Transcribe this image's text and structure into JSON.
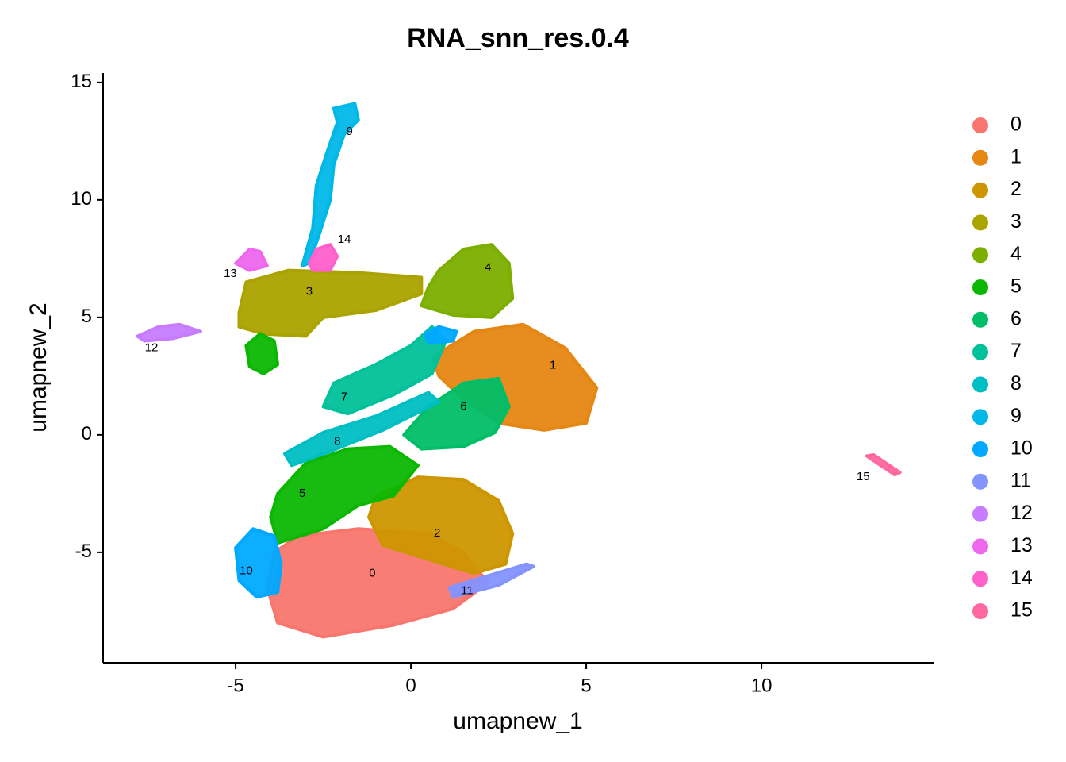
{
  "chart_data": {
    "type": "scatter",
    "title": "RNA_snn_res.0.4",
    "x_label": "umapnew_1",
    "y_label": "umapnew_2",
    "xlim": [
      -8.78,
      14.93
    ],
    "ylim": [
      -9.7,
      15.4
    ],
    "xticks": [
      -5,
      0,
      5,
      10
    ],
    "yticks": [
      -5,
      0,
      5,
      10,
      15
    ],
    "legend": "right",
    "series": [
      {
        "name": "0",
        "color": "#F8766D",
        "label_at": [
          -1.1,
          -5.9
        ],
        "regions": [
          {
            "x": [
              -3.9,
              -3.2,
              -1.5,
              0.5,
              1.5,
              2.2,
              1.2,
              -0.5,
              -2.5,
              -3.8,
              -4.1
            ],
            "y": [
              -5.0,
              -4.3,
              -4.0,
              -4.2,
              -5.0,
              -6.3,
              -7.4,
              -8.1,
              -8.6,
              -8.0,
              -6.5
            ]
          }
        ]
      },
      {
        "name": "1",
        "color": "#E68613",
        "label_at": [
          4.05,
          2.95
        ],
        "regions": [
          {
            "x": [
              0.6,
              1.8,
              3.2,
              4.4,
              5.3,
              5.0,
              3.8,
              2.5,
              1.5,
              0.8
            ],
            "y": [
              3.3,
              4.4,
              4.7,
              3.7,
              2.0,
              0.5,
              0.2,
              0.5,
              1.5,
              2.5
            ]
          }
        ]
      },
      {
        "name": "2",
        "color": "#CD9600",
        "label_at": [
          0.75,
          -4.2
        ],
        "regions": [
          {
            "x": [
              -1.0,
              0.2,
              1.5,
              2.5,
              2.9,
              2.7,
              1.8,
              0.5,
              -0.8,
              -1.2
            ],
            "y": [
              -2.6,
              -1.8,
              -1.9,
              -2.8,
              -4.2,
              -5.5,
              -5.9,
              -5.3,
              -4.7,
              -3.5
            ]
          }
        ]
      },
      {
        "name": "3",
        "color": "#ABA300",
        "label_at": [
          -2.9,
          6.1
        ],
        "regions": [
          {
            "x": [
              -4.9,
              -4.7,
              -3.5,
              -1.5,
              0.3,
              0.3,
              -1.0,
              -2.5,
              -3.0,
              -4.2,
              -4.9
            ],
            "y": [
              5.2,
              6.5,
              7.0,
              6.9,
              6.7,
              6.0,
              5.3,
              5.0,
              4.2,
              4.3,
              4.6
            ]
          }
        ]
      },
      {
        "name": "4",
        "color": "#7CAE00",
        "label_at": [
          2.2,
          7.1
        ],
        "regions": [
          {
            "x": [
              0.8,
              1.5,
              2.3,
              2.8,
              2.9,
              2.3,
              1.2,
              0.3,
              0.5
            ],
            "y": [
              7.0,
              7.9,
              8.1,
              7.3,
              5.8,
              5.0,
              5.1,
              5.5,
              6.3
            ]
          }
        ]
      },
      {
        "name": "5",
        "color": "#0CB702",
        "label_at": [
          -3.1,
          -2.5
        ],
        "regions": [
          {
            "x": [
              -3.8,
              -3.0,
              -1.8,
              -0.6,
              0.2,
              -0.5,
              -1.5,
              -2.5,
              -3.8,
              -4.0
            ],
            "y": [
              -2.5,
              -1.2,
              -0.6,
              -0.5,
              -1.3,
              -2.6,
              -3.0,
              -4.0,
              -4.6,
              -3.5
            ]
          },
          {
            "x": [
              -4.7,
              -4.3,
              -3.9,
              -3.8,
              -4.2,
              -4.6
            ],
            "y": [
              3.8,
              4.3,
              4.0,
              3.0,
              2.6,
              2.9
            ]
          }
        ]
      },
      {
        "name": "6",
        "color": "#00BE67",
        "label_at": [
          1.5,
          1.2
        ],
        "regions": [
          {
            "x": [
              -0.2,
              0.5,
              1.5,
              2.5,
              2.8,
              2.4,
              1.5,
              0.3
            ],
            "y": [
              0.0,
              1.2,
              2.2,
              2.4,
              1.2,
              0.1,
              -0.5,
              -0.6
            ]
          }
        ]
      },
      {
        "name": "7",
        "color": "#00C19A",
        "label_at": [
          -1.9,
          1.6
        ],
        "regions": [
          {
            "x": [
              -2.5,
              -2.2,
              -1.0,
              0.0,
              0.6,
              1.0,
              0.6,
              -0.5,
              -1.8
            ],
            "y": [
              1.2,
              2.2,
              3.0,
              3.8,
              4.6,
              4.0,
              2.6,
              1.7,
              0.9
            ]
          }
        ]
      },
      {
        "name": "8",
        "color": "#00BFC4",
        "label_at": [
          -2.1,
          -0.3
        ],
        "regions": [
          {
            "x": [
              -3.6,
              -2.5,
              -1.0,
              0.5,
              0.8,
              -0.8,
              -2.3,
              -3.4
            ],
            "y": [
              -0.8,
              0.1,
              0.8,
              1.8,
              1.4,
              0.2,
              -0.7,
              -1.3
            ]
          }
        ]
      },
      {
        "name": "9",
        "color": "#00B8E7",
        "label_at": [
          -1.75,
          12.9
        ],
        "regions": [
          {
            "x": [
              -3.1,
              -2.8,
              -2.7,
              -2.4,
              -2.1,
              -2.2,
              -1.6,
              -1.5,
              -1.9,
              -2.2,
              -2.3,
              -2.6,
              -2.9
            ],
            "y": [
              7.2,
              8.8,
              10.6,
              12.0,
              13.3,
              13.9,
              14.1,
              13.4,
              12.8,
              11.5,
              10.0,
              8.6,
              7.3
            ]
          }
        ]
      },
      {
        "name": "10",
        "color": "#00A9FF",
        "label_at": [
          -4.7,
          -5.8
        ],
        "regions": [
          {
            "x": [
              -5.0,
              -4.5,
              -3.9,
              -3.7,
              -3.8,
              -4.4,
              -4.9
            ],
            "y": [
              -4.8,
              -4.0,
              -4.3,
              -5.5,
              -6.7,
              -6.9,
              -6.2
            ]
          },
          {
            "x": [
              0.4,
              0.8,
              1.3,
              1.2,
              0.5
            ],
            "y": [
              4.3,
              4.6,
              4.4,
              4.0,
              3.9
            ]
          }
        ]
      },
      {
        "name": "11",
        "color": "#8494FF",
        "label_at": [
          1.6,
          -6.65
        ],
        "regions": [
          {
            "x": [
              1.2,
              2.5,
              3.5,
              3.3,
              2.2,
              1.1
            ],
            "y": [
              -6.9,
              -6.4,
              -5.6,
              -5.5,
              -6.0,
              -6.5
            ]
          }
        ]
      },
      {
        "name": "12",
        "color": "#C77CFF",
        "label_at": [
          -7.4,
          3.7
        ],
        "regions": [
          {
            "x": [
              -7.8,
              -7.2,
              -6.6,
              -6.0,
              -6.8,
              -7.6
            ],
            "y": [
              4.2,
              4.6,
              4.7,
              4.4,
              4.1,
              4.0
            ]
          }
        ]
      },
      {
        "name": "13",
        "color": "#ED68ED",
        "label_at": [
          -5.15,
          6.85
        ],
        "regions": [
          {
            "x": [
              -5.0,
              -4.6,
              -4.3,
              -4.1,
              -4.6
            ],
            "y": [
              7.3,
              7.9,
              7.8,
              7.2,
              7.0
            ]
          }
        ]
      },
      {
        "name": "14",
        "color": "#FF61CC",
        "label_at": [
          -1.9,
          8.3
        ],
        "regions": [
          {
            "x": [
              -2.9,
              -2.7,
              -2.3,
              -2.1,
              -2.3,
              -2.8
            ],
            "y": [
              7.3,
              7.9,
              8.1,
              7.6,
              7.0,
              7.0
            ]
          }
        ]
      },
      {
        "name": "15",
        "color": "#FF68A1",
        "label_at": [
          12.9,
          -1.8
        ],
        "regions": [
          {
            "x": [
              13.0,
              13.2,
              13.95,
              13.8
            ],
            "y": [
              -0.9,
              -0.85,
              -1.6,
              -1.7
            ]
          }
        ]
      }
    ]
  }
}
